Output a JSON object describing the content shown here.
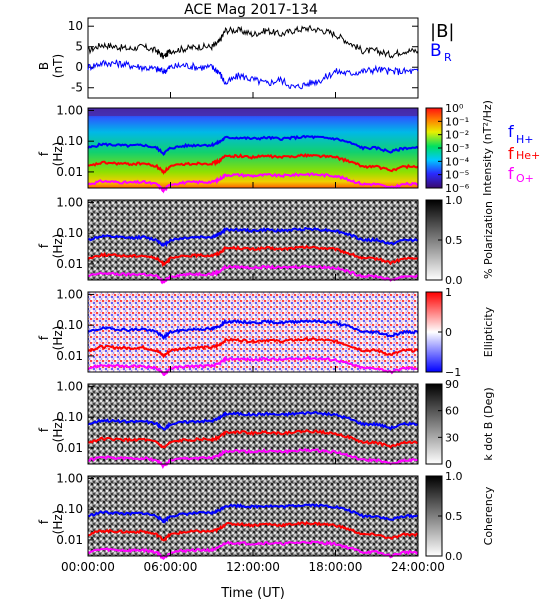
{
  "title": "ACE Mag 2017-134",
  "xlabel": "Time (UT)",
  "x_ticks": [
    "00:00:00",
    "06:00:00",
    "12:00:00",
    "18:00:00",
    "24:00:00"
  ],
  "x_tick_hours": [
    0,
    6,
    12,
    18,
    24
  ],
  "colors": {
    "fH": "#0000ff",
    "fHe": "#ff0000",
    "fO": "#ff00ff",
    "B": "#000000",
    "BR": "#0000ff"
  },
  "panel1": {
    "ylabel_top": "B",
    "ylabel_bottom": "(nT)",
    "y_ticks": [
      "10",
      "5",
      "0",
      "-5"
    ],
    "legend_B": "|B|",
    "legend_BR": "B",
    "legend_BR_sub": "R"
  },
  "freq_ylabel_top": "f",
  "freq_ylabel_bottom": "(Hz)",
  "freq_ticks": [
    "1.00",
    "0.10",
    "0.01"
  ],
  "gyro_legend": {
    "h": "f",
    "h_sub": "H+",
    "he": "f",
    "he_sub": "He+",
    "o": "f",
    "o_sub": "O+"
  },
  "panels": [
    {
      "name": "intensity",
      "cb_label": "Intensity (nT²/Hz)",
      "cb_ticks": [
        "10⁰",
        "10⁻¹",
        "10⁻²",
        "10⁻³",
        "10⁻⁴",
        "10⁻⁵",
        "10⁻⁶"
      ]
    },
    {
      "name": "polarization",
      "cb_label": "% Polarization",
      "cb_ticks": [
        "1.0",
        "0.5",
        "0.0"
      ]
    },
    {
      "name": "ellipticity",
      "cb_label": "Ellipticity",
      "cb_ticks": [
        "1",
        "0",
        "−1"
      ]
    },
    {
      "name": "kdotb",
      "cb_label": "k dot B (Deg)",
      "cb_ticks": [
        "90",
        "60",
        "30",
        "0"
      ]
    },
    {
      "name": "coherency",
      "cb_label": "Coherency",
      "cb_ticks": [
        "1.0",
        "0.5",
        "0.0"
      ]
    }
  ],
  "chart_data": {
    "type": "line",
    "title": "ACE Mag 2017-134",
    "xlabel": "Time (UT)",
    "xlim_hours": [
      0,
      24
    ],
    "magnetic_field": {
      "ylabel": "B (nT)",
      "ylim": [
        -7.5,
        12
      ],
      "x_hours": [
        0,
        1,
        2,
        3,
        4,
        5,
        5.5,
        6,
        7,
        8,
        9,
        9.5,
        10,
        11,
        12,
        13,
        14,
        15,
        16,
        17,
        18,
        19,
        20,
        21,
        22,
        23,
        24
      ],
      "series": [
        {
          "name": "|B|",
          "values": [
            4,
            5.5,
            5,
            4.5,
            5,
            4,
            2.5,
            4,
            4.5,
            5,
            5,
            6,
            9,
            9,
            8,
            9,
            8,
            9,
            9.5,
            9,
            8,
            6,
            4,
            4,
            3,
            4,
            4
          ]
        },
        {
          "name": "B_R",
          "values": [
            0,
            1,
            1,
            0.5,
            0,
            -0.5,
            -1,
            0,
            0.5,
            0,
            0,
            -1,
            -4,
            -2,
            -3,
            -4,
            -3,
            -5,
            -4,
            -3,
            -1,
            -1.5,
            -1,
            -0.5,
            -1,
            -1,
            -1
          ]
        }
      ]
    },
    "gyrofrequencies_hz": {
      "x_hours": [
        0,
        1,
        2,
        3,
        4,
        5,
        5.5,
        6,
        7,
        8,
        9,
        9.5,
        10,
        11,
        12,
        13,
        14,
        15,
        16,
        17,
        18,
        19,
        20,
        21,
        22,
        23,
        24
      ],
      "series": [
        {
          "name": "f_H+",
          "values": [
            0.06,
            0.08,
            0.075,
            0.07,
            0.075,
            0.06,
            0.04,
            0.06,
            0.07,
            0.075,
            0.075,
            0.09,
            0.13,
            0.13,
            0.12,
            0.13,
            0.12,
            0.13,
            0.14,
            0.13,
            0.12,
            0.09,
            0.06,
            0.06,
            0.045,
            0.06,
            0.06
          ]
        },
        {
          "name": "f_He+",
          "values": [
            0.015,
            0.02,
            0.019,
            0.018,
            0.019,
            0.015,
            0.01,
            0.015,
            0.018,
            0.019,
            0.019,
            0.022,
            0.033,
            0.033,
            0.03,
            0.033,
            0.03,
            0.033,
            0.035,
            0.033,
            0.03,
            0.022,
            0.015,
            0.015,
            0.011,
            0.015,
            0.015
          ]
        },
        {
          "name": "f_O+",
          "values": [
            0.004,
            0.005,
            0.0047,
            0.0045,
            0.0047,
            0.004,
            0.0025,
            0.004,
            0.0045,
            0.0047,
            0.0047,
            0.0055,
            0.008,
            0.008,
            0.0075,
            0.008,
            0.0075,
            0.008,
            0.0085,
            0.008,
            0.0075,
            0.0055,
            0.004,
            0.004,
            0.003,
            0.004,
            0.004
          ]
        }
      ]
    },
    "freq_ylim_hz": [
      0.003,
      1.2
    ],
    "log_y": true
  }
}
